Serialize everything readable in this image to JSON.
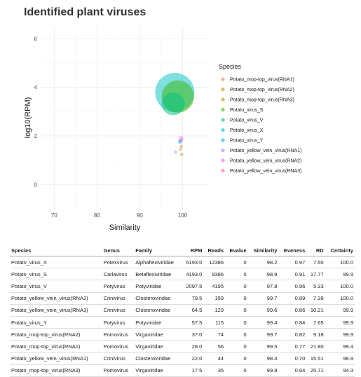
{
  "page": {
    "title": "Identified plant viruses"
  },
  "chart_data": {
    "type": "scatter",
    "title": "",
    "xlabel": "Similarity",
    "ylabel": "log10(RPM)",
    "xlim": [
      67,
      106
    ],
    "ylim": [
      -1,
      6.5
    ],
    "x_ticks": [
      70,
      80,
      90,
      100
    ],
    "y_ticks": [
      0,
      2,
      4,
      6
    ],
    "grid": true,
    "legend_title": "Species",
    "legend_position": "right",
    "size_encodes": "RPM",
    "series": [
      {
        "name": "Potato_mop-top_virus(RNA1)",
        "color": "#F8766D",
        "x": [
          99.5
        ],
        "y": [
          1.45
        ],
        "rpm": [
          28.0
        ]
      },
      {
        "name": "Potato_mop-top_virus(RNA2)",
        "color": "#D89000",
        "x": [
          99.7
        ],
        "y": [
          1.57
        ],
        "rpm": [
          37.0
        ]
      },
      {
        "name": "Potato_mop-top_virus(RNA3)",
        "color": "#A3A500",
        "x": [
          99.8
        ],
        "y": [
          1.24
        ],
        "rpm": [
          17.5
        ]
      },
      {
        "name": "Potato_virus_S",
        "color": "#39B600",
        "x": [
          98.9
        ],
        "y": [
          3.62
        ],
        "rpm": [
          4193.0
        ]
      },
      {
        "name": "Potato_virus_V",
        "color": "#00BF7D",
        "x": [
          97.8
        ],
        "y": [
          3.32
        ],
        "rpm": [
          2097.5
        ]
      },
      {
        "name": "Potato_virus_X",
        "color": "#00BFC4",
        "x": [
          98.2
        ],
        "y": [
          3.79
        ],
        "rpm": [
          6193.0
        ]
      },
      {
        "name": "Potato_virus_Y",
        "color": "#00B0F6",
        "x": [
          99.4
        ],
        "y": [
          1.76
        ],
        "rpm": [
          57.5
        ]
      },
      {
        "name": "Potato_yellow_vein_virus(RNA1)",
        "color": "#9590FF",
        "x": [
          98.4
        ],
        "y": [
          1.34
        ],
        "rpm": [
          22.0
        ]
      },
      {
        "name": "Potato_yellow_vein_virus(RNA2)",
        "color": "#E76BF3",
        "x": [
          99.7
        ],
        "y": [
          1.9
        ],
        "rpm": [
          79.5
        ]
      },
      {
        "name": "Potato_yellow_vein_virus(RNA3)",
        "color": "#FF62BC",
        "x": [
          99.6
        ],
        "y": [
          1.81
        ],
        "rpm": [
          64.5
        ]
      }
    ]
  },
  "table": {
    "columns": [
      "Species",
      "Genus",
      "Family",
      "RPM",
      "Reads",
      "Evalue",
      "Similarity",
      "Eveness",
      "RD",
      "Certainty"
    ],
    "rows": [
      [
        "Potato_virus_X",
        "Potexvirus",
        "Alphaflexiviridae",
        "6193.0",
        "12386",
        "0",
        "98.2",
        "0.97",
        "7.50",
        "100.0"
      ],
      [
        "Potato_virus_S",
        "Carlavirus",
        "Betaflexiviridae",
        "4193.0",
        "8386",
        "0",
        "98.9",
        "0.91",
        "17.77",
        "99.9"
      ],
      [
        "Potato_virus_V",
        "Potyvirus",
        "Potyviridae",
        "2097.5",
        "4195",
        "0",
        "97.8",
        "0.96",
        "5.33",
        "100.0"
      ],
      [
        "Potato_yellow_vein_virus(RNA2)",
        "Crinivirus",
        "Closteroviridae",
        "79.5",
        "159",
        "0",
        "99.7",
        "0.89",
        "7.39",
        "100.0"
      ],
      [
        "Potato_yellow_vein_virus(RNA3)",
        "Crinivirus",
        "Closteroviridae",
        "64.5",
        "129",
        "0",
        "99.6",
        "0.86",
        "10.21",
        "99.9"
      ],
      [
        "Potato_virus_Y",
        "Potyvirus",
        "Potyviridae",
        "57.5",
        "115",
        "0",
        "99.4",
        "0.84",
        "7.65",
        "99.9"
      ],
      [
        "Potato_mop-top_virus(RNA2)",
        "Pomovirus",
        "Virgaviridae",
        "37.0",
        "74",
        "0",
        "99.7",
        "0.82",
        "9.18",
        "99.9"
      ],
      [
        "Potato_mop-top_virus(RNA1)",
        "Pomovirus",
        "Virgaviridae",
        "28.0",
        "56",
        "0",
        "99.5",
        "0.77",
        "21.80",
        "99.4"
      ],
      [
        "Potato_yellow_vein_virus(RNA1)",
        "Crinivirus",
        "Closteroviridae",
        "22.0",
        "44",
        "0",
        "98.4",
        "0.70",
        "15.51",
        "98.9"
      ],
      [
        "Potato_mop-top_virus(RNA3)",
        "Pomovirus",
        "Virgaviridae",
        "17.5",
        "35",
        "0",
        "99.8",
        "0.64",
        "25.71",
        "94.3"
      ]
    ]
  }
}
